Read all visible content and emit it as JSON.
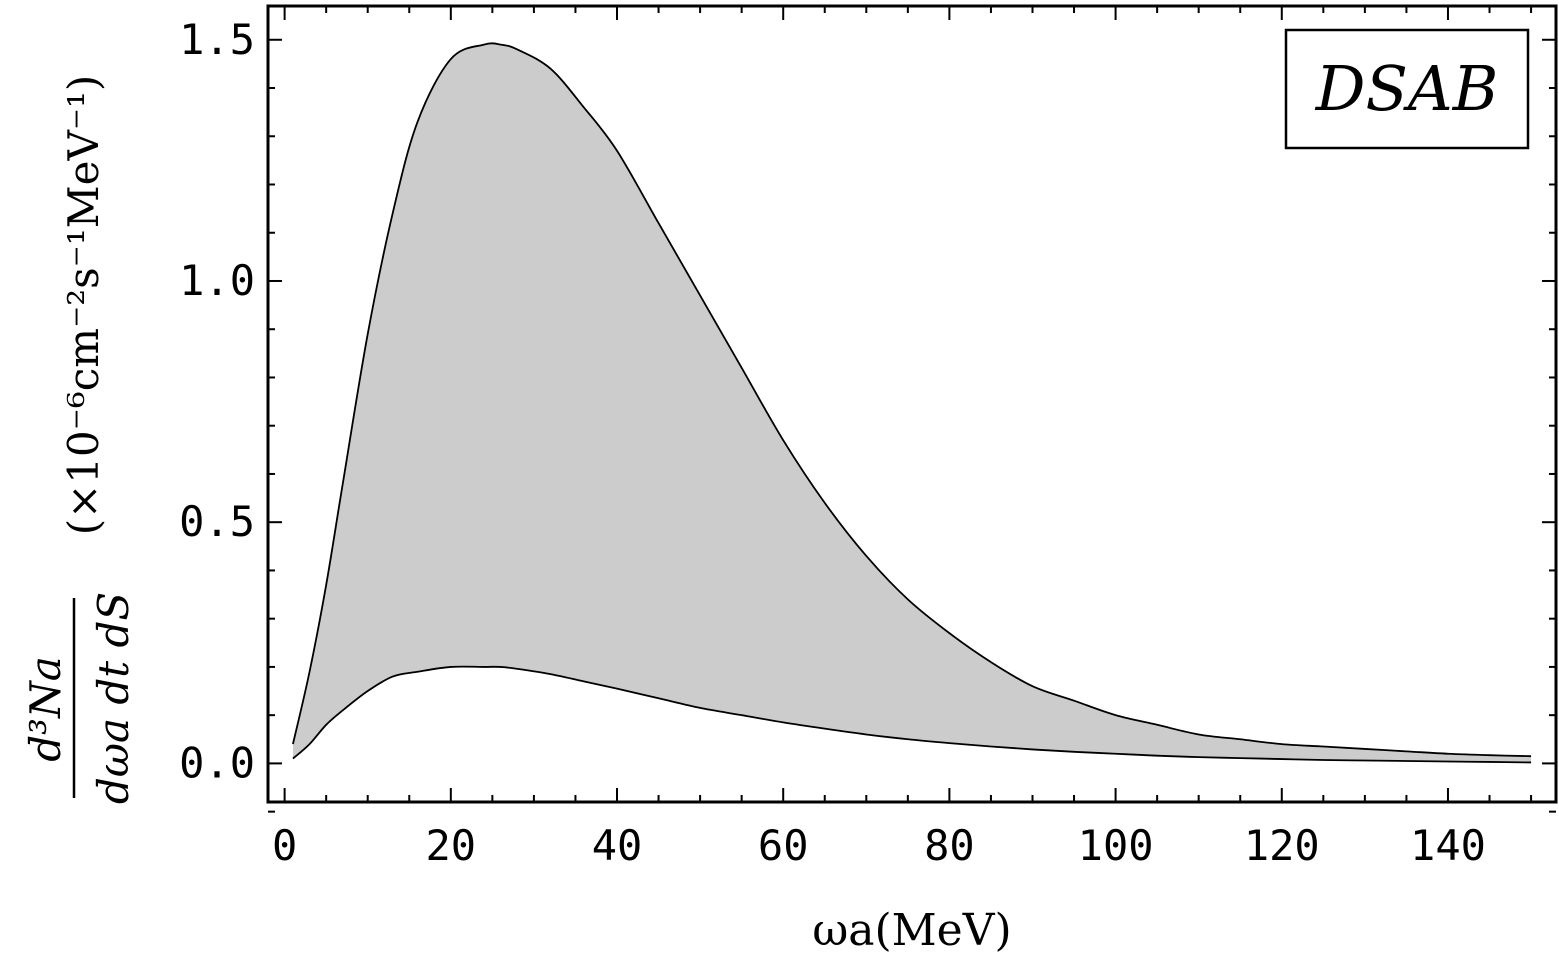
{
  "chart_data": {
    "type": "area",
    "xlabel": "ωa(MeV)",
    "ylabel_fraction_numerator": "d³Na",
    "ylabel_fraction_denominator": "dωa dt dS",
    "ylabel_units": "(×10⁻⁶cm⁻²s⁻¹MeV⁻¹)",
    "legend": {
      "text": "DSAB",
      "position": "top-right"
    },
    "xlim": [
      -2,
      153
    ],
    "ylim": [
      -0.08,
      1.57
    ],
    "x_ticks": [
      0,
      20,
      40,
      60,
      80,
      100,
      120,
      140
    ],
    "x_tick_labels": [
      "0",
      "20",
      "40",
      "60",
      "80",
      "100",
      "120",
      "140"
    ],
    "y_ticks": [
      0.0,
      0.5,
      1.0,
      1.5
    ],
    "y_tick_labels": [
      "0.0",
      "0.5",
      "1.0",
      "1.5"
    ],
    "grid": false,
    "fill_color": "#cccccc",
    "line_color": "#000000",
    "series": [
      {
        "x": [
          1,
          3,
          5,
          7,
          10,
          13,
          16,
          20,
          24,
          26,
          28,
          32,
          36,
          40,
          45,
          50,
          55,
          60,
          65,
          70,
          75,
          80,
          85,
          90,
          95,
          100,
          105,
          110,
          115,
          120,
          125,
          130,
          135,
          140,
          145,
          150
        ],
        "values": [
          0.04,
          0.19,
          0.37,
          0.58,
          0.89,
          1.14,
          1.33,
          1.46,
          1.49,
          1.49,
          1.48,
          1.44,
          1.36,
          1.27,
          1.12,
          0.97,
          0.82,
          0.67,
          0.54,
          0.43,
          0.34,
          0.27,
          0.21,
          0.16,
          0.13,
          0.1,
          0.08,
          0.06,
          0.05,
          0.04,
          0.035,
          0.03,
          0.025,
          0.02,
          0.017,
          0.015
        ]
      },
      {
        "x": [
          1,
          3,
          5,
          7,
          10,
          13,
          16,
          20,
          24,
          26,
          28,
          32,
          36,
          40,
          45,
          50,
          55,
          60,
          65,
          70,
          75,
          80,
          85,
          90,
          95,
          100,
          105,
          110,
          115,
          120,
          125,
          130,
          135,
          140,
          145,
          150
        ],
        "values": [
          0.01,
          0.04,
          0.08,
          0.11,
          0.15,
          0.18,
          0.19,
          0.2,
          0.2,
          0.2,
          0.196,
          0.185,
          0.17,
          0.155,
          0.135,
          0.115,
          0.1,
          0.085,
          0.072,
          0.06,
          0.05,
          0.042,
          0.035,
          0.029,
          0.024,
          0.02,
          0.016,
          0.013,
          0.011,
          0.009,
          0.007,
          0.006,
          0.005,
          0.004,
          0.003,
          0.002
        ]
      }
    ]
  }
}
